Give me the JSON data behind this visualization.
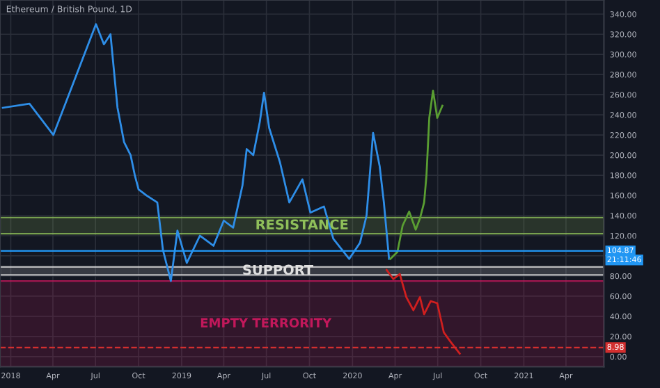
{
  "chart_data": {
    "type": "line",
    "title": "Ethereum / British Pound, 1D",
    "xlim": [
      "2017-12-09",
      "2021-06-21"
    ],
    "ylim": [
      -10,
      354
    ],
    "xticks": [
      {
        "value": "2018-01-01",
        "label": "2018"
      },
      {
        "value": "2018-04-01",
        "label": "Apr"
      },
      {
        "value": "2018-07-01",
        "label": "Jul"
      },
      {
        "value": "2018-10-01",
        "label": "Oct"
      },
      {
        "value": "2019-01-01",
        "label": "2019"
      },
      {
        "value": "2019-04-01",
        "label": "Apr"
      },
      {
        "value": "2019-07-01",
        "label": "Jul"
      },
      {
        "value": "2019-10-01",
        "label": "Oct"
      },
      {
        "value": "2020-01-01",
        "label": "2020"
      },
      {
        "value": "2020-04-01",
        "label": "Apr"
      },
      {
        "value": "2020-07-01",
        "label": "Jul"
      },
      {
        "value": "2020-10-01",
        "label": "Oct"
      },
      {
        "value": "2021-01-01",
        "label": "2021"
      },
      {
        "value": "2021-04-01",
        "label": "Apr"
      }
    ],
    "yticks": [
      {
        "value": 0,
        "label": "0.00"
      },
      {
        "value": 20,
        "label": "20.00"
      },
      {
        "value": 40,
        "label": "40.00"
      },
      {
        "value": 60,
        "label": "60.00"
      },
      {
        "value": 80,
        "label": "80.00"
      },
      {
        "value": 100,
        "label": null
      },
      {
        "value": 120,
        "label": "120.00"
      },
      {
        "value": 140,
        "label": "140.00"
      },
      {
        "value": 160,
        "label": "160.00"
      },
      {
        "value": 180,
        "label": "180.00"
      },
      {
        "value": 200,
        "label": "200.00"
      },
      {
        "value": 220,
        "label": "220.00"
      },
      {
        "value": 240,
        "label": "240.00"
      },
      {
        "value": 260,
        "label": "260.00"
      },
      {
        "value": 280,
        "label": "280.00"
      },
      {
        "value": 300,
        "label": "300.00"
      },
      {
        "value": 320,
        "label": "320.00"
      },
      {
        "value": 340,
        "label": "340.00"
      }
    ],
    "grid": true,
    "line_style": "solid",
    "series": [
      {
        "color": "#2e8ee8",
        "x": [
          "2017-12-15",
          "2018-02-10",
          "2018-04-02",
          "2018-07-02",
          "2018-07-19",
          "2018-08-02",
          "2018-08-17",
          "2018-08-31",
          "2018-09-14",
          "2018-09-23",
          "2018-10-01",
          "2018-10-18",
          "2018-11-10",
          "2018-11-22",
          "2018-12-09",
          "2018-12-23",
          "2019-01-12",
          "2019-02-09",
          "2019-03-10",
          "2019-04-01",
          "2019-04-21",
          "2019-05-11",
          "2019-05-20",
          "2019-06-03",
          "2019-06-17",
          "2019-06-26",
          "2019-07-07",
          "2019-07-30",
          "2019-08-19",
          "2019-09-16",
          "2019-10-03",
          "2019-11-01",
          "2019-11-21",
          "2019-12-25",
          "2020-01-17",
          "2020-01-31",
          "2020-02-14",
          "2020-02-28",
          "2020-03-08",
          "2020-03-19"
        ],
        "values": [
          247,
          251,
          220,
          330,
          310,
          320,
          247,
          213,
          200,
          180,
          166,
          160,
          153,
          106,
          75,
          125,
          93,
          120,
          110,
          135,
          128,
          170,
          206,
          200,
          233,
          262,
          227,
          193,
          153,
          176,
          143,
          149,
          117,
          97,
          113,
          140,
          222,
          189,
          153,
          97
        ]
      },
      {
        "color": "#5a9e32",
        "x": [
          "2020-03-22",
          "2020-04-06",
          "2020-04-17",
          "2020-05-01",
          "2020-05-15",
          "2020-05-24",
          "2020-06-02",
          "2020-06-07",
          "2020-06-13",
          "2020-06-21",
          "2020-06-30",
          "2020-07-11"
        ],
        "values": [
          97,
          104,
          130,
          144,
          126,
          137,
          153,
          180,
          237,
          264,
          237,
          249
        ]
      },
      {
        "color": "#d01f1f",
        "x": [
          "2020-03-14",
          "2020-03-28",
          "2020-04-11",
          "2020-04-25",
          "2020-05-10",
          "2020-05-24",
          "2020-06-02",
          "2020-06-16",
          "2020-06-30",
          "2020-07-14",
          "2020-07-28",
          "2020-08-17"
        ],
        "values": [
          86,
          77,
          82,
          59,
          46,
          59,
          42,
          55,
          53,
          24,
          15,
          3
        ]
      }
    ],
    "bands": [
      {
        "axis": "y",
        "from": 122,
        "to": 138,
        "label": "RESISTANCE",
        "color": "#8fbf5a"
      },
      {
        "axis": "y",
        "from": 81,
        "to": 89,
        "label": "SUPPORT",
        "color": "#e0e0e0"
      },
      {
        "axis": "y",
        "from": -10,
        "to": 75,
        "label": "EMPTY TERRORITY",
        "color": "#c2185b"
      }
    ],
    "ref_lines": [
      {
        "axis": "y",
        "value": 104.87,
        "label": "104.87",
        "color": "#2196f3",
        "line_style": "solid"
      },
      {
        "axis": "y",
        "value": 8.98,
        "label": "8.98",
        "color": "#d32f2f",
        "line_style": "dashed"
      }
    ],
    "annotations": [
      "21:11:46"
    ]
  }
}
